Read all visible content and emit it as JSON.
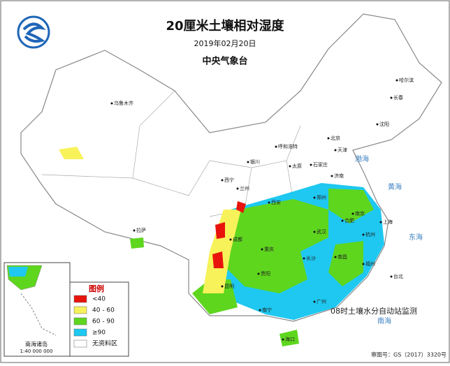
{
  "header": {
    "title": "20厘米土壤相对湿度",
    "date": "2019年02月20日",
    "agency": "中央气象台"
  },
  "legend": {
    "title": "图例",
    "items": [
      {
        "label": "<40",
        "color": "#e8140c"
      },
      {
        "label": "40 - 60",
        "color": "#f7f25a"
      },
      {
        "label": "60 - 90",
        "color": "#5ed61e"
      },
      {
        "label": "≥90",
        "color": "#1ec8f0"
      },
      {
        "label": "无资料区",
        "color": "#ffffff"
      }
    ]
  },
  "inset": {
    "label": "南海诸岛",
    "scale": "1:40 000 000"
  },
  "note": "08时土壤水分自动站监测",
  "approval": "审图号：GS（2017）3320号",
  "seas": [
    "渤海",
    "黄海",
    "东海",
    "南海"
  ],
  "cities": [
    "乌鲁木齐",
    "拉萨",
    "西宁",
    "兰州",
    "银川",
    "呼和浩特",
    "北京",
    "天津",
    "石家庄",
    "太原",
    "济南",
    "郑州",
    "西安",
    "成都",
    "重庆",
    "贵阳",
    "昆明",
    "南宁",
    "广州",
    "海口",
    "长沙",
    "武汉",
    "南昌",
    "福州",
    "台北",
    "杭州",
    "上海",
    "南京",
    "合肥",
    "沈阳",
    "长春",
    "哈尔滨"
  ]
}
